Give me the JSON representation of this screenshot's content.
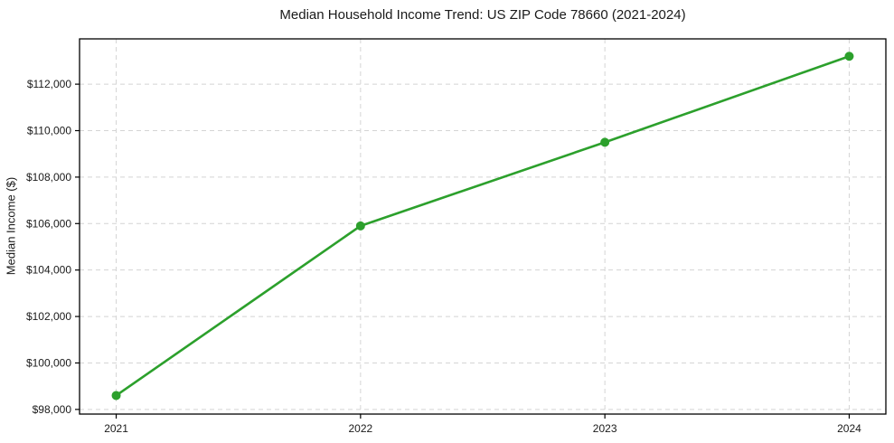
{
  "chart_data": {
    "type": "line",
    "title": "Median Household Income Trend: US ZIP Code 78660 (2021-2024)",
    "xlabel": "",
    "ylabel": "Median Income ($)",
    "x": [
      2021,
      2022,
      2023,
      2024
    ],
    "series": [
      {
        "name": "Median Household Income",
        "values": [
          98600,
          105900,
          109500,
          113200
        ]
      }
    ],
    "xticks": {
      "values": [
        2021,
        2022,
        2023,
        2024
      ],
      "labels": [
        "2021",
        "2022",
        "2023",
        "2024"
      ]
    },
    "yticks": {
      "values": [
        98000,
        100000,
        102000,
        104000,
        106000,
        108000,
        110000,
        112000
      ],
      "labels": [
        "$98,000",
        "$100,000",
        "$102,000",
        "$104,000",
        "$106,000",
        "$108,000",
        "$110,000",
        "$112,000"
      ]
    },
    "xlim": [
      2020.85,
      2024.15
    ],
    "ylim": [
      97800,
      113950
    ],
    "grid": "both",
    "grid_style": "dashed",
    "legend": "none",
    "colors": {
      "line": "#2ca02c",
      "marker": "#2ca02c",
      "grid": "#d4d4d4",
      "spine": "#000000",
      "text": "#1a1a1a",
      "background": "#ffffff"
    }
  }
}
